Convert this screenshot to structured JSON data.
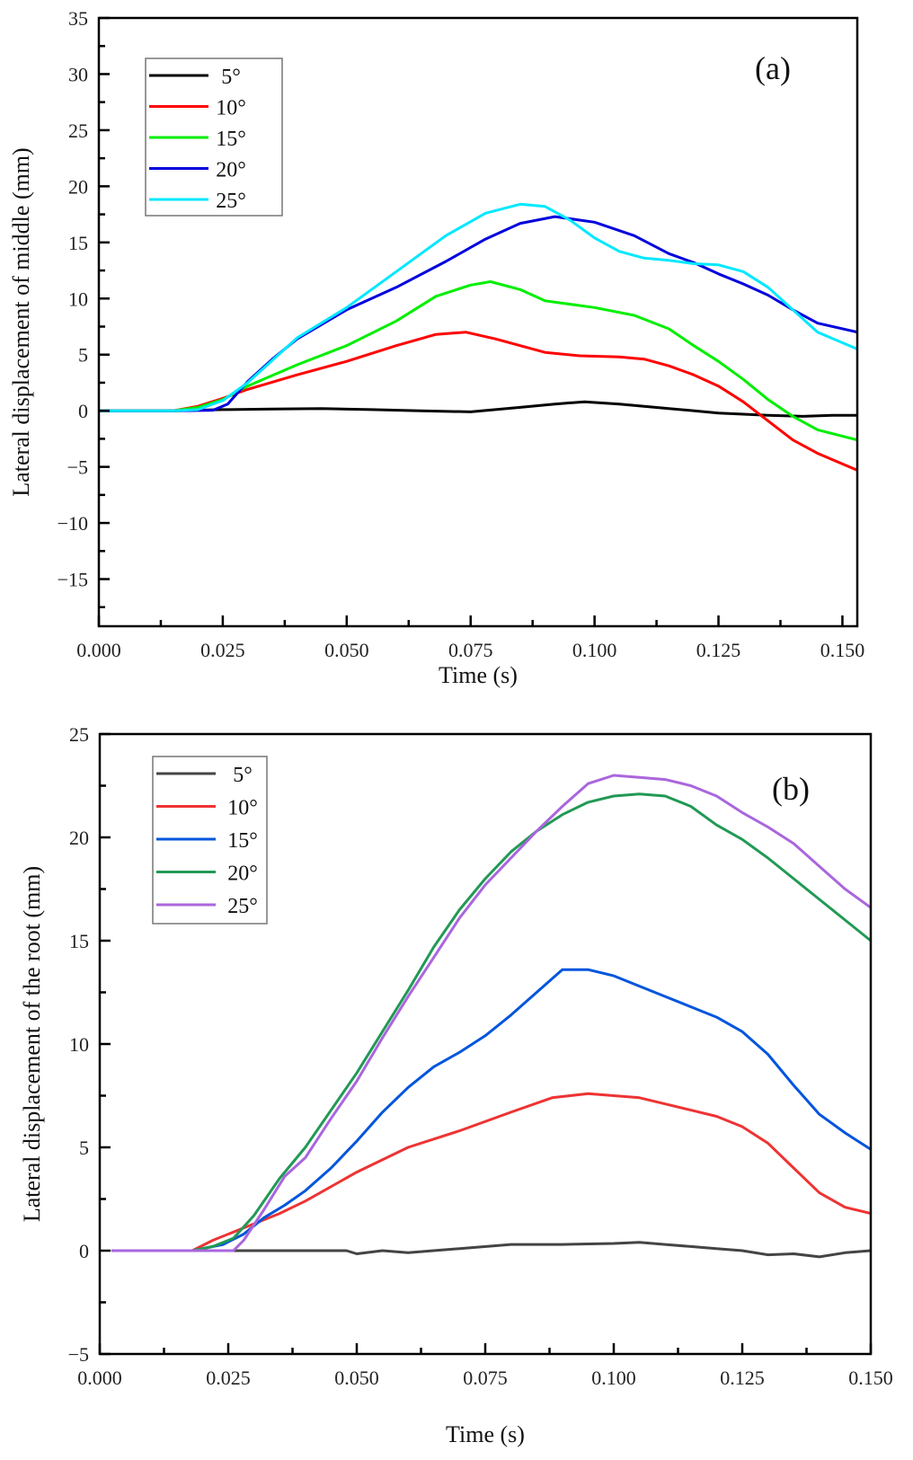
{
  "chart_data": [
    {
      "type": "line",
      "panel_label": "(a)",
      "title": "",
      "xlabel": "Time (s)",
      "ylabel": "Lateral displacement of middle (mm)",
      "xlim": [
        0,
        0.153
      ],
      "ylim": [
        -19.2,
        35
      ],
      "xticks": [
        0.0,
        0.025,
        0.05,
        0.075,
        0.1,
        0.125,
        0.15
      ],
      "xtick_labels": [
        "0.000",
        "0.025",
        "0.050",
        "0.075",
        "0.100",
        "0.125",
        "0.150"
      ],
      "yticks": [
        -15,
        -10,
        -5,
        0,
        5,
        10,
        15,
        20,
        25,
        30,
        35
      ],
      "ytick_labels": [
        "−15",
        "−10",
        "−5",
        "0",
        "5",
        "10",
        "15",
        "20",
        "25",
        "30",
        "35"
      ],
      "grid": false,
      "legend_position": "top-left",
      "series": [
        {
          "name": "5°",
          "color": "#000000",
          "x": [
            0,
            0.015,
            0.025,
            0.035,
            0.045,
            0.055,
            0.065,
            0.075,
            0.085,
            0.092,
            0.098,
            0.105,
            0.115,
            0.125,
            0.135,
            0.142,
            0.148,
            0.153
          ],
          "y": [
            0,
            0,
            0.1,
            0.15,
            0.2,
            0.1,
            0,
            -0.1,
            0.3,
            0.6,
            0.8,
            0.6,
            0.2,
            -0.2,
            -0.4,
            -0.5,
            -0.4,
            -0.4
          ]
        },
        {
          "name": "10°",
          "color": "#ff0000",
          "x": [
            0,
            0.015,
            0.02,
            0.025,
            0.03,
            0.04,
            0.05,
            0.06,
            0.068,
            0.074,
            0.08,
            0.09,
            0.097,
            0.105,
            0.11,
            0.115,
            0.12,
            0.125,
            0.13,
            0.135,
            0.14,
            0.145,
            0.153
          ],
          "y": [
            0,
            0,
            0.4,
            1.1,
            1.9,
            3.2,
            4.4,
            5.8,
            6.8,
            7.0,
            6.4,
            5.2,
            4.9,
            4.8,
            4.6,
            4.0,
            3.2,
            2.2,
            0.8,
            -0.9,
            -2.6,
            -3.8,
            -5.3
          ]
        },
        {
          "name": "15°",
          "color": "#00ee00",
          "x": [
            0,
            0.015,
            0.02,
            0.025,
            0.03,
            0.04,
            0.05,
            0.06,
            0.068,
            0.075,
            0.079,
            0.085,
            0.09,
            0.1,
            0.108,
            0.115,
            0.12,
            0.125,
            0.13,
            0.135,
            0.14,
            0.145,
            0.153
          ],
          "y": [
            0,
            0,
            0.3,
            1.0,
            2.2,
            4.1,
            5.8,
            8.0,
            10.2,
            11.2,
            11.5,
            10.8,
            9.8,
            9.2,
            8.5,
            7.3,
            5.8,
            4.4,
            2.8,
            1.0,
            -0.5,
            -1.7,
            -2.6
          ]
        },
        {
          "name": "20°",
          "color": "#0000dd",
          "x": [
            0,
            0.015,
            0.023,
            0.026,
            0.03,
            0.035,
            0.04,
            0.05,
            0.06,
            0.07,
            0.078,
            0.085,
            0.092,
            0.1,
            0.108,
            0.115,
            0.12,
            0.125,
            0.13,
            0.135,
            0.14,
            0.145,
            0.153
          ],
          "y": [
            0,
            0,
            0.05,
            0.6,
            2.6,
            4.6,
            6.4,
            9.0,
            11.0,
            13.3,
            15.3,
            16.7,
            17.3,
            16.8,
            15.6,
            14.0,
            13.2,
            12.2,
            11.3,
            10.3,
            9.0,
            7.8,
            7.0
          ]
        },
        {
          "name": "25°",
          "color": "#00e8ff",
          "x": [
            0,
            0.015,
            0.02,
            0.025,
            0.03,
            0.035,
            0.04,
            0.05,
            0.06,
            0.07,
            0.078,
            0.085,
            0.09,
            0.095,
            0.1,
            0.105,
            0.11,
            0.115,
            0.12,
            0.125,
            0.13,
            0.135,
            0.14,
            0.145,
            0.153
          ],
          "y": [
            0,
            0,
            0.1,
            0.9,
            2.5,
            4.5,
            6.5,
            9.2,
            12.4,
            15.6,
            17.6,
            18.4,
            18.2,
            17.0,
            15.4,
            14.2,
            13.6,
            13.4,
            13.1,
            13.0,
            12.4,
            11.0,
            9.0,
            7.0,
            5.5
          ]
        }
      ]
    },
    {
      "type": "line",
      "panel_label": "(b)",
      "title": "",
      "xlabel": "Time (s)",
      "ylabel": "Lateral displacement of the root (mm)",
      "xlim": [
        0,
        0.15
      ],
      "ylim": [
        -5,
        25
      ],
      "xticks": [
        0.0,
        0.025,
        0.05,
        0.075,
        0.1,
        0.125,
        0.15
      ],
      "xtick_labels": [
        "0.000",
        "0.025",
        "0.050",
        "0.075",
        "0.100",
        "0.125",
        "0.150"
      ],
      "yticks": [
        -5,
        0,
        5,
        10,
        15,
        20,
        25
      ],
      "ytick_labels": [
        "−5",
        "0",
        "5",
        "10",
        "15",
        "20",
        "25"
      ],
      "grid": false,
      "legend_position": "top-left",
      "series": [
        {
          "name": "5°",
          "color": "#444444",
          "x": [
            0.0025,
            0.02,
            0.03,
            0.04,
            0.048,
            0.05,
            0.055,
            0.06,
            0.07,
            0.08,
            0.09,
            0.1,
            0.105,
            0.11,
            0.115,
            0.12,
            0.125,
            0.13,
            0.135,
            0.14,
            0.145,
            0.15
          ],
          "y": [
            0,
            0,
            0,
            0,
            0,
            -0.15,
            0,
            -0.1,
            0.1,
            0.3,
            0.3,
            0.35,
            0.4,
            0.3,
            0.2,
            0.1,
            0,
            -0.2,
            -0.15,
            -0.3,
            -0.1,
            0
          ]
        },
        {
          "name": "10°",
          "color": "#ee3333",
          "x": [
            0.0025,
            0.018,
            0.022,
            0.026,
            0.03,
            0.035,
            0.04,
            0.05,
            0.06,
            0.07,
            0.08,
            0.088,
            0.095,
            0.1,
            0.105,
            0.11,
            0.115,
            0.12,
            0.125,
            0.13,
            0.135,
            0.14,
            0.145,
            0.15
          ],
          "y": [
            0,
            0,
            0.5,
            0.9,
            1.3,
            1.8,
            2.4,
            3.8,
            5.0,
            5.8,
            6.7,
            7.4,
            7.6,
            7.5,
            7.4,
            7.1,
            6.8,
            6.5,
            6.0,
            5.2,
            4.0,
            2.8,
            2.1,
            1.8
          ]
        },
        {
          "name": "15°",
          "color": "#0055dd",
          "x": [
            0.0025,
            0.018,
            0.024,
            0.028,
            0.032,
            0.036,
            0.04,
            0.045,
            0.05,
            0.055,
            0.06,
            0.065,
            0.07,
            0.075,
            0.08,
            0.085,
            0.09,
            0.095,
            0.1,
            0.105,
            0.11,
            0.115,
            0.12,
            0.125,
            0.13,
            0.135,
            0.14,
            0.145,
            0.15
          ],
          "y": [
            0,
            0,
            0.3,
            0.8,
            1.6,
            2.2,
            2.9,
            4.0,
            5.3,
            6.7,
            7.9,
            8.9,
            9.6,
            10.4,
            11.4,
            12.5,
            13.6,
            13.6,
            13.3,
            12.8,
            12.3,
            11.8,
            11.3,
            10.6,
            9.5,
            8.0,
            6.6,
            5.7,
            4.9
          ]
        },
        {
          "name": "20°",
          "color": "#229955",
          "x": [
            0.0025,
            0.018,
            0.022,
            0.026,
            0.03,
            0.035,
            0.04,
            0.045,
            0.05,
            0.055,
            0.06,
            0.065,
            0.07,
            0.075,
            0.08,
            0.085,
            0.09,
            0.095,
            0.1,
            0.105,
            0.11,
            0.115,
            0.12,
            0.125,
            0.13,
            0.135,
            0.14,
            0.145,
            0.15
          ],
          "y": [
            0,
            0,
            0.2,
            0.6,
            1.7,
            3.5,
            5.0,
            6.8,
            8.6,
            10.6,
            12.6,
            14.7,
            16.5,
            18.0,
            19.3,
            20.3,
            21.1,
            21.7,
            22.0,
            22.1,
            22.0,
            21.5,
            20.6,
            19.9,
            19.0,
            18.0,
            17.0,
            16.0,
            15.0
          ]
        },
        {
          "name": "25°",
          "color": "#aa66dd",
          "x": [
            0.0025,
            0.02,
            0.026,
            0.028,
            0.032,
            0.036,
            0.04,
            0.045,
            0.05,
            0.055,
            0.06,
            0.065,
            0.07,
            0.075,
            0.08,
            0.085,
            0.09,
            0.095,
            0.1,
            0.105,
            0.11,
            0.115,
            0.12,
            0.125,
            0.13,
            0.135,
            0.14,
            0.145,
            0.15
          ],
          "y": [
            0,
            0,
            0,
            0.5,
            2.0,
            3.6,
            4.5,
            6.4,
            8.2,
            10.3,
            12.3,
            14.2,
            16.1,
            17.7,
            19.0,
            20.3,
            21.5,
            22.6,
            23.0,
            22.9,
            22.8,
            22.5,
            22.0,
            21.2,
            20.5,
            19.7,
            18.6,
            17.5,
            16.6
          ]
        }
      ]
    }
  ]
}
